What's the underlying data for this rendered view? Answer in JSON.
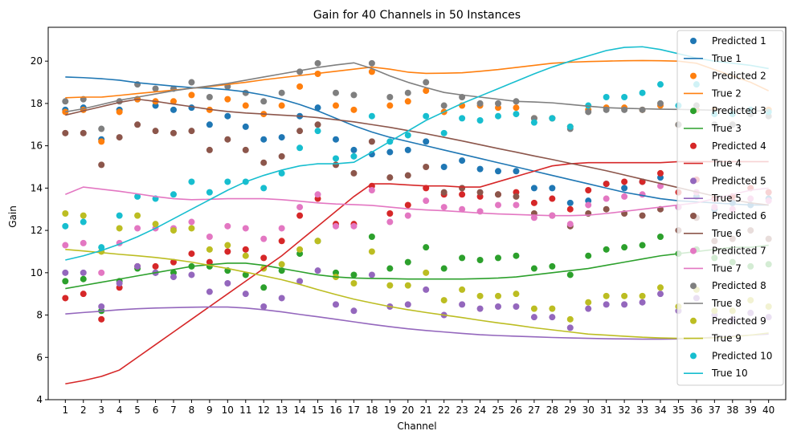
{
  "chart_data": {
    "type": "scatter",
    "title": "Gain for 40 Channels in 50 Instances",
    "xlabel": "Channel",
    "ylabel": "Gain",
    "xlim": [
      0.05,
      40.95
    ],
    "ylim": [
      4.0,
      21.6
    ],
    "x_ticks": [
      1,
      2,
      3,
      4,
      5,
      6,
      7,
      8,
      9,
      10,
      11,
      12,
      13,
      14,
      15,
      16,
      17,
      18,
      19,
      20,
      21,
      22,
      23,
      24,
      25,
      26,
      27,
      28,
      29,
      30,
      31,
      32,
      33,
      34,
      35,
      36,
      37,
      38,
      39,
      40
    ],
    "y_ticks": [
      4,
      6,
      8,
      10,
      12,
      14,
      16,
      18,
      20
    ],
    "grid": false,
    "legend_position": "top-right",
    "x": [
      1,
      2,
      3,
      4,
      5,
      6,
      7,
      8,
      9,
      10,
      11,
      12,
      13,
      14,
      15,
      16,
      17,
      18,
      19,
      20,
      21,
      22,
      23,
      24,
      25,
      26,
      27,
      28,
      29,
      30,
      31,
      32,
      33,
      34,
      35,
      36,
      37,
      38,
      39,
      40
    ],
    "series": [
      {
        "color": "#1f77b4",
        "predicted_label": "Predicted 1",
        "true_label": "True 1",
        "predicted": [
          17.7,
          17.8,
          16.3,
          17.7,
          18.2,
          17.9,
          17.7,
          17.8,
          17.0,
          17.4,
          16.9,
          16.3,
          16.4,
          17.4,
          17.8,
          16.3,
          15.8,
          15.6,
          15.7,
          15.8,
          16.2,
          15.0,
          15.3,
          14.9,
          14.8,
          14.8,
          14.0,
          14.0,
          13.3,
          13.4,
          14.2,
          14.0,
          14.3,
          14.5,
          13.1,
          13.6,
          13.0,
          13.3,
          13.2,
          13.5
        ],
        "true": [
          19.25,
          19.22,
          19.17,
          19.1,
          18.98,
          18.9,
          18.82,
          18.75,
          18.72,
          18.65,
          18.55,
          18.4,
          18.2,
          17.95,
          17.65,
          17.3,
          16.95,
          16.65,
          16.4,
          16.2,
          16.0,
          15.8,
          15.6,
          15.4,
          15.2,
          15.0,
          14.8,
          14.6,
          14.4,
          14.2,
          14.0,
          13.8,
          13.65,
          13.5,
          13.4,
          13.35,
          13.3,
          13.25,
          13.2,
          13.2
        ]
      },
      {
        "color": "#ff7f0e",
        "predicted_label": "Predicted 2",
        "true_label": "True 2",
        "predicted": [
          17.6,
          17.7,
          16.2,
          17.6,
          18.2,
          18.1,
          18.1,
          18.4,
          17.7,
          18.2,
          17.9,
          17.5,
          17.9,
          18.8,
          19.4,
          17.9,
          17.7,
          19.5,
          17.9,
          18.1,
          18.6,
          17.6,
          17.9,
          17.9,
          17.8,
          17.8,
          17.3,
          17.3,
          16.9,
          17.7,
          17.8,
          17.8,
          17.7,
          17.9,
          17.0,
          17.7,
          17.7,
          17.0,
          17.7,
          17.7
        ],
        "true": [
          18.27,
          18.3,
          18.3,
          18.38,
          18.47,
          18.55,
          18.63,
          18.72,
          18.8,
          18.9,
          19.0,
          19.12,
          19.22,
          19.32,
          19.42,
          19.52,
          19.62,
          19.72,
          19.62,
          19.48,
          19.42,
          19.43,
          19.45,
          19.52,
          19.6,
          19.7,
          19.8,
          19.9,
          19.95,
          19.98,
          20.0,
          20.02,
          20.03,
          20.02,
          20.0,
          19.9,
          19.6,
          19.3,
          19.0,
          18.6
        ]
      },
      {
        "color": "#2ca02c",
        "predicted_label": "Predicted 3",
        "true_label": "True 3",
        "predicted": [
          9.6,
          9.7,
          8.2,
          9.6,
          10.2,
          10.0,
          10.0,
          10.3,
          10.3,
          10.1,
          9.9,
          9.3,
          10.1,
          10.9,
          11.5,
          10.0,
          9.9,
          11.7,
          10.2,
          10.5,
          11.2,
          10.2,
          10.7,
          10.6,
          10.7,
          10.8,
          10.2,
          10.3,
          9.9,
          10.8,
          11.1,
          11.2,
          11.3,
          11.7,
          10.9,
          11.1,
          10.7,
          10.5,
          10.3,
          10.4
        ],
        "true": [
          9.25,
          9.4,
          9.55,
          9.7,
          9.85,
          10.0,
          10.15,
          10.3,
          10.38,
          10.45,
          10.45,
          10.35,
          10.2,
          10.05,
          9.9,
          9.8,
          9.75,
          9.73,
          9.72,
          9.7,
          9.7,
          9.7,
          9.7,
          9.72,
          9.75,
          9.8,
          9.9,
          10.0,
          10.1,
          10.2,
          10.35,
          10.5,
          10.65,
          10.8,
          10.9,
          11.0,
          11.1,
          11.2,
          11.2,
          11.3
        ]
      },
      {
        "color": "#d62728",
        "predicted_label": "Predicted 4",
        "true_label": "True 4",
        "predicted": [
          8.8,
          9.0,
          7.8,
          9.3,
          10.3,
          10.3,
          10.5,
          10.9,
          10.5,
          11.0,
          11.1,
          10.7,
          11.5,
          12.7,
          13.5,
          12.3,
          12.3,
          14.1,
          12.8,
          13.2,
          14.0,
          13.7,
          13.7,
          13.6,
          13.7,
          13.8,
          13.3,
          13.5,
          13.0,
          13.9,
          14.2,
          14.3,
          14.3,
          14.7,
          13.8,
          14.4,
          13.5,
          13.6,
          14.0,
          13.8
        ],
        "true": [
          4.75,
          4.9,
          5.1,
          5.4,
          6.0,
          6.6,
          7.2,
          7.8,
          8.4,
          9.0,
          9.6,
          10.2,
          10.8,
          11.5,
          12.2,
          12.9,
          13.6,
          14.2,
          14.2,
          14.15,
          14.1,
          14.1,
          14.05,
          14.05,
          14.3,
          14.55,
          14.8,
          15.05,
          15.15,
          15.2,
          15.2,
          15.2,
          15.2,
          15.2,
          15.25,
          15.25,
          15.25,
          15.25,
          15.25,
          15.25
        ]
      },
      {
        "color": "#9467bd",
        "predicted_label": "Predicted 5",
        "true_label": "True 5",
        "predicted": [
          10.0,
          10.0,
          8.4,
          9.5,
          10.3,
          10.0,
          9.8,
          9.9,
          9.1,
          9.5,
          9.0,
          8.4,
          8.8,
          9.6,
          10.1,
          8.5,
          8.2,
          9.9,
          8.4,
          8.5,
          9.2,
          8.0,
          8.5,
          8.3,
          8.4,
          8.4,
          7.9,
          7.9,
          7.4,
          8.3,
          8.5,
          8.5,
          8.6,
          9.0,
          8.2,
          8.8,
          8.0,
          7.8,
          8.1,
          7.9
        ],
        "true": [
          8.05,
          8.12,
          8.18,
          8.25,
          8.3,
          8.33,
          8.35,
          8.37,
          8.38,
          8.38,
          8.33,
          8.25,
          8.15,
          8.03,
          7.92,
          7.8,
          7.68,
          7.56,
          7.45,
          7.35,
          7.27,
          7.2,
          7.13,
          7.07,
          7.03,
          7.0,
          6.97,
          6.94,
          6.92,
          6.9,
          6.88,
          6.87,
          6.86,
          6.86,
          6.87,
          6.9,
          6.95,
          7.0,
          7.05,
          7.1
        ]
      },
      {
        "color": "#8c564b",
        "predicted_label": "Predicted 6",
        "true_label": "True 6",
        "predicted": [
          16.6,
          16.6,
          15.1,
          16.4,
          17.0,
          16.7,
          16.6,
          16.7,
          15.8,
          16.3,
          15.8,
          15.2,
          15.5,
          16.7,
          17.0,
          15.1,
          14.7,
          16.2,
          14.5,
          14.6,
          15.0,
          13.8,
          14.0,
          13.8,
          13.7,
          13.6,
          12.8,
          12.7,
          12.2,
          12.8,
          13.0,
          12.8,
          12.7,
          13.0,
          12.0,
          12.6,
          11.5,
          11.6,
          12.0,
          11.6
        ],
        "true": [
          17.45,
          17.65,
          17.85,
          18.05,
          18.2,
          18.1,
          17.97,
          17.85,
          17.72,
          17.62,
          17.55,
          17.5,
          17.45,
          17.4,
          17.33,
          17.23,
          17.13,
          17.0,
          16.87,
          16.72,
          16.57,
          16.4,
          16.23,
          16.05,
          15.87,
          15.7,
          15.52,
          15.35,
          15.17,
          15.0,
          14.82,
          14.62,
          14.42,
          14.22,
          14.02,
          13.82,
          13.62,
          13.45,
          13.3,
          13.2
        ]
      },
      {
        "color": "#e377c2",
        "predicted_label": "Predicted 7",
        "true_label": "True 7",
        "predicted": [
          11.3,
          11.4,
          10.0,
          11.4,
          12.1,
          12.1,
          12.1,
          12.4,
          11.7,
          12.2,
          12.1,
          11.6,
          12.1,
          13.1,
          13.7,
          12.2,
          12.2,
          13.9,
          12.4,
          12.7,
          13.4,
          13.1,
          13.0,
          12.9,
          13.2,
          13.2,
          12.6,
          12.7,
          12.3,
          13.2,
          13.5,
          13.6,
          13.7,
          14.1,
          13.1,
          13.8,
          13.1,
          13.0,
          13.5,
          13.4
        ],
        "true": [
          13.7,
          14.05,
          13.95,
          13.85,
          13.73,
          13.6,
          13.5,
          13.45,
          13.47,
          13.5,
          13.5,
          13.5,
          13.45,
          13.38,
          13.3,
          13.25,
          13.22,
          13.18,
          13.1,
          13.02,
          12.97,
          12.93,
          12.88,
          12.82,
          12.78,
          12.75,
          12.72,
          12.7,
          12.7,
          12.72,
          12.8,
          12.9,
          13.0,
          13.1,
          13.2,
          13.3,
          13.5,
          13.7,
          13.9,
          14.0
        ]
      },
      {
        "color": "#7f7f7f",
        "predicted_label": "Predicted 8",
        "true_label": "True 8",
        "predicted": [
          18.1,
          18.2,
          16.8,
          18.1,
          18.9,
          18.7,
          18.7,
          19.0,
          18.3,
          18.8,
          18.5,
          18.1,
          18.5,
          19.5,
          19.9,
          18.5,
          18.4,
          19.9,
          18.3,
          18.5,
          19.0,
          17.9,
          18.3,
          18.0,
          18.0,
          18.1,
          17.3,
          17.3,
          16.8,
          17.6,
          17.7,
          17.7,
          17.7,
          18.0,
          17.0,
          17.9,
          17.0,
          17.0,
          17.5,
          17.4
        ],
        "true": [
          17.6,
          17.75,
          17.95,
          18.15,
          18.3,
          18.45,
          18.6,
          18.72,
          18.83,
          18.95,
          19.1,
          19.25,
          19.4,
          19.55,
          19.7,
          19.82,
          19.92,
          19.65,
          19.3,
          19.0,
          18.75,
          18.52,
          18.4,
          18.3,
          18.2,
          18.1,
          18.07,
          18.03,
          17.95,
          17.87,
          17.8,
          17.77,
          17.75,
          17.73,
          17.72,
          17.7,
          17.68,
          17.66,
          17.65,
          17.65
        ]
      },
      {
        "color": "#bcbd22",
        "predicted_label": "Predicted 9",
        "true_label": "True 9",
        "predicted": [
          12.8,
          12.7,
          11.0,
          12.1,
          12.7,
          12.3,
          12.0,
          12.1,
          11.1,
          11.3,
          10.8,
          10.2,
          10.4,
          11.1,
          11.5,
          9.8,
          9.5,
          11.0,
          9.4,
          9.4,
          10.0,
          8.7,
          9.2,
          8.9,
          8.9,
          9.0,
          8.3,
          8.3,
          7.8,
          8.6,
          8.9,
          8.9,
          8.9,
          9.3,
          8.4,
          9.2,
          8.2,
          8.2,
          8.7,
          8.4
        ],
        "true": [
          11.1,
          11.03,
          10.95,
          10.87,
          10.8,
          10.72,
          10.62,
          10.5,
          10.35,
          10.2,
          10.03,
          9.85,
          9.67,
          9.45,
          9.2,
          8.97,
          8.75,
          8.57,
          8.4,
          8.25,
          8.12,
          8.0,
          7.88,
          7.75,
          7.63,
          7.52,
          7.4,
          7.3,
          7.2,
          7.1,
          7.05,
          7.0,
          6.95,
          6.92,
          6.9,
          6.9,
          6.92,
          6.97,
          7.05,
          7.15
        ]
      },
      {
        "color": "#17becf",
        "predicted_label": "Predicted 10",
        "true_label": "True 10",
        "predicted": [
          12.2,
          12.4,
          11.2,
          12.7,
          13.6,
          13.5,
          13.7,
          14.3,
          13.8,
          14.3,
          14.3,
          14.0,
          14.7,
          15.9,
          16.7,
          15.4,
          15.5,
          17.4,
          16.2,
          16.5,
          17.4,
          16.6,
          17.3,
          17.2,
          17.4,
          17.5,
          17.1,
          17.3,
          16.9,
          17.9,
          18.3,
          18.3,
          18.5,
          18.9,
          17.9,
          18.9,
          17.5,
          17.5,
          17.7,
          17.6
        ],
        "true": [
          10.6,
          10.8,
          11.05,
          11.35,
          11.7,
          12.1,
          12.55,
          13.0,
          13.45,
          13.9,
          14.3,
          14.6,
          14.85,
          15.05,
          15.15,
          15.15,
          15.22,
          15.7,
          16.2,
          16.7,
          17.2,
          17.6,
          18.0,
          18.35,
          18.7,
          19.05,
          19.4,
          19.72,
          20.0,
          20.25,
          20.5,
          20.65,
          20.68,
          20.55,
          20.35,
          20.15,
          20.0,
          19.9,
          19.8,
          19.65
        ]
      }
    ]
  }
}
